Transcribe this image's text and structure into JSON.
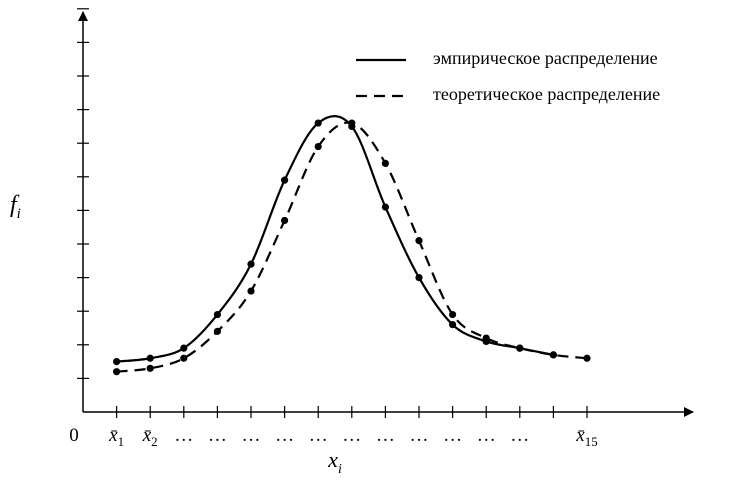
{
  "chart_data": {
    "type": "line",
    "title": "",
    "ylabel": "f",
    "ylabel_sub": "i",
    "xlabel": "x",
    "xlabel_sub": "i",
    "origin_label": "0",
    "x": [
      1,
      2,
      3,
      4,
      5,
      6,
      7,
      8,
      9,
      10,
      11,
      12,
      13,
      14,
      15
    ],
    "x_tick_labels": [
      {
        "x": 1,
        "base": "x̄",
        "sub": "1"
      },
      {
        "x": 2,
        "base": "x̄",
        "sub": "2"
      },
      {
        "x": 3,
        "base": "…",
        "sub": ""
      },
      {
        "x": 4,
        "base": "…",
        "sub": ""
      },
      {
        "x": 5,
        "base": "…",
        "sub": ""
      },
      {
        "x": 6,
        "base": "…",
        "sub": ""
      },
      {
        "x": 7,
        "base": "…",
        "sub": ""
      },
      {
        "x": 8,
        "base": "…",
        "sub": ""
      },
      {
        "x": 9,
        "base": "…",
        "sub": ""
      },
      {
        "x": 10,
        "base": "…",
        "sub": ""
      },
      {
        "x": 11,
        "base": "…",
        "sub": ""
      },
      {
        "x": 12,
        "base": "…",
        "sub": ""
      },
      {
        "x": 13,
        "base": "…",
        "sub": ""
      },
      {
        "x": 15,
        "base": "x̄",
        "sub": "15"
      }
    ],
    "y_ticks": [
      1,
      2,
      3,
      4,
      5,
      6,
      7,
      8,
      9,
      10,
      11,
      12
    ],
    "xlim": [
      0,
      18
    ],
    "ylim": [
      0,
      12.4
    ],
    "legend_position": "top-right",
    "series": [
      {
        "name": "эмпирическое распределение",
        "style": "solid",
        "color": "#000000",
        "points": [
          [
            1,
            1.5
          ],
          [
            2,
            1.6
          ],
          [
            3,
            1.9
          ],
          [
            4,
            2.9
          ],
          [
            5,
            4.4
          ],
          [
            6,
            6.9
          ],
          [
            7,
            8.6
          ],
          [
            8,
            8.5
          ],
          [
            9,
            6.1
          ],
          [
            10,
            4.0
          ],
          [
            11,
            2.6
          ],
          [
            12,
            2.1
          ],
          [
            13,
            1.9
          ],
          [
            14,
            1.7
          ]
        ]
      },
      {
        "name": "теоретическое распределение",
        "style": "dashed",
        "color": "#000000",
        "points": [
          [
            1,
            1.2
          ],
          [
            2,
            1.3
          ],
          [
            3,
            1.6
          ],
          [
            4,
            2.4
          ],
          [
            5,
            3.6
          ],
          [
            6,
            5.7
          ],
          [
            7,
            7.9
          ],
          [
            8,
            8.6
          ],
          [
            9,
            7.4
          ],
          [
            10,
            5.1
          ],
          [
            11,
            2.9
          ],
          [
            12,
            2.2
          ],
          [
            13,
            1.9
          ],
          [
            14,
            1.7
          ],
          [
            15,
            1.6
          ]
        ]
      }
    ]
  }
}
